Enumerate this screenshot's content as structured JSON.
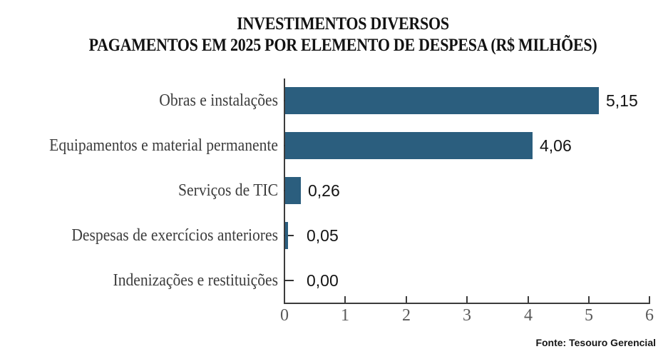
{
  "title": {
    "line1": "INVESTIMENTOS DIVERSOS",
    "line2": "PAGAMENTOS EM 2025 POR ELEMENTO DE DESPESA (R$ MILHÕES)"
  },
  "source": "Fonte: Tesouro Gerencial",
  "chart_data": {
    "type": "bar",
    "orientation": "horizontal",
    "title": "INVESTIMENTOS DIVERSOS — PAGAMENTOS EM 2025 POR ELEMENTO DE DESPESA (R$ MILHÕES)",
    "categories": [
      "Obras e instalações",
      "Equipamentos e material permanente",
      "Serviços de TIC",
      "Despesas de exercícios anteriores",
      "Indenizações e restituições"
    ],
    "values": [
      5.15,
      4.06,
      0.26,
      0.05,
      0.0
    ],
    "value_labels": [
      "5,15",
      "4,06",
      "0,26",
      "0,05",
      "0,00"
    ],
    "xlabel": "",
    "ylabel": "",
    "xlim": [
      0,
      6
    ],
    "xticks": [
      0,
      1,
      2,
      3,
      4,
      5,
      6
    ],
    "grid": false,
    "legend": "none",
    "bar_color": "#2B5E7E",
    "colors": {
      "bar": "#2B5E7E",
      "axis": "#3C3C3C",
      "tick_label": "#5A5A5A",
      "category_label": "#3D3D3D",
      "value_label": "#141414"
    },
    "source": "Fonte: Tesouro Gerencial"
  }
}
